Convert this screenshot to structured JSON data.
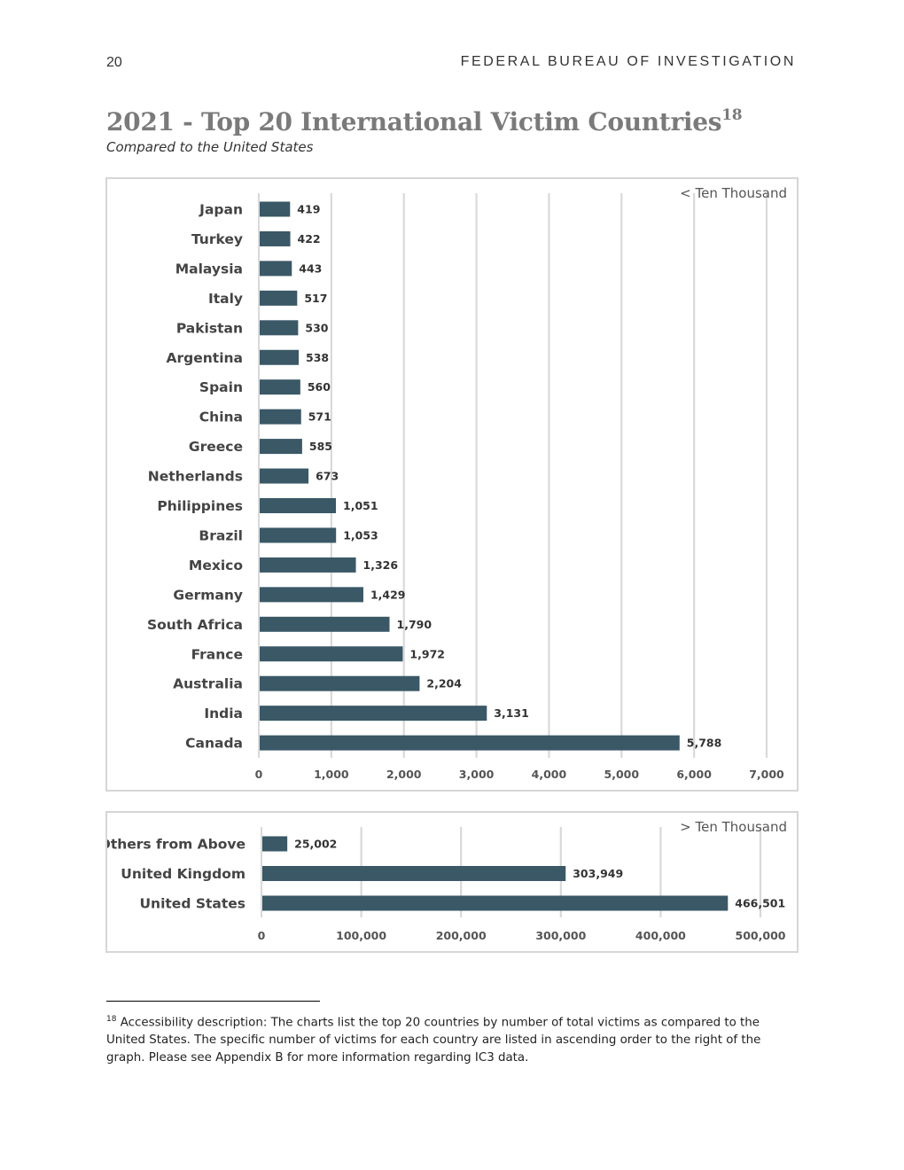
{
  "header": {
    "page_number": "20",
    "organization": "FEDERAL BUREAU OF INVESTIGATION"
  },
  "title": {
    "text": "2021 - Top 20 International Victim Countries",
    "footnote_ref": "18",
    "subtitle": "Compared to the United States"
  },
  "colors": {
    "bar": "#3a5866",
    "grid": "#d9d9d9",
    "border": "#d6d6d6"
  },
  "chart_data": [
    {
      "type": "bar",
      "orientation": "horizontal",
      "note": "< Ten Thousand",
      "categories": [
        "Japan",
        "Turkey",
        "Malaysia",
        "Italy",
        "Pakistan",
        "Argentina",
        "Spain",
        "China",
        "Greece",
        "Netherlands",
        "Philippines",
        "Brazil",
        "Mexico",
        "Germany",
        "South Africa",
        "France",
        "Australia",
        "India",
        "Canada"
      ],
      "values": [
        419,
        422,
        443,
        517,
        530,
        538,
        560,
        571,
        585,
        673,
        1051,
        1053,
        1326,
        1429,
        1790,
        1972,
        2204,
        3131,
        5788
      ],
      "value_labels": [
        "419",
        "422",
        "443",
        "517",
        "530",
        "538",
        "560",
        "571",
        "585",
        "673",
        "1,051",
        "1,053",
        "1,326",
        "1,429",
        "1,790",
        "1,972",
        "2,204",
        "3,131",
        "5,788"
      ],
      "xlim": [
        0,
        7000
      ],
      "ticks": [
        0,
        1000,
        2000,
        3000,
        4000,
        5000,
        6000,
        7000
      ],
      "tick_labels": [
        "0",
        "1,000",
        "2,000",
        "3,000",
        "4,000",
        "5,000",
        "6,000",
        "7,000"
      ],
      "grid": true,
      "legend": "none"
    },
    {
      "type": "bar",
      "orientation": "horizontal",
      "note": "> Ten Thousand",
      "categories": [
        "Others from Above",
        "United Kingdom",
        "United States"
      ],
      "values": [
        25002,
        303949,
        466501
      ],
      "value_labels": [
        "25,002",
        "303,949",
        "466,501"
      ],
      "xlim": [
        0,
        500000
      ],
      "ticks": [
        0,
        100000,
        200000,
        300000,
        400000,
        500000
      ],
      "tick_labels": [
        "0",
        "100,000",
        "200,000",
        "300,000",
        "400,000",
        "500,000"
      ],
      "grid": true,
      "legend": "none"
    }
  ],
  "footnote": {
    "marker": "18",
    "text": " Accessibility description: The charts list the top 20 countries by number of total victims as compared to the United States. The specific number of victims for each country are listed in ascending order to the right of the graph. Please see Appendix B for more information regarding IC3 data."
  }
}
